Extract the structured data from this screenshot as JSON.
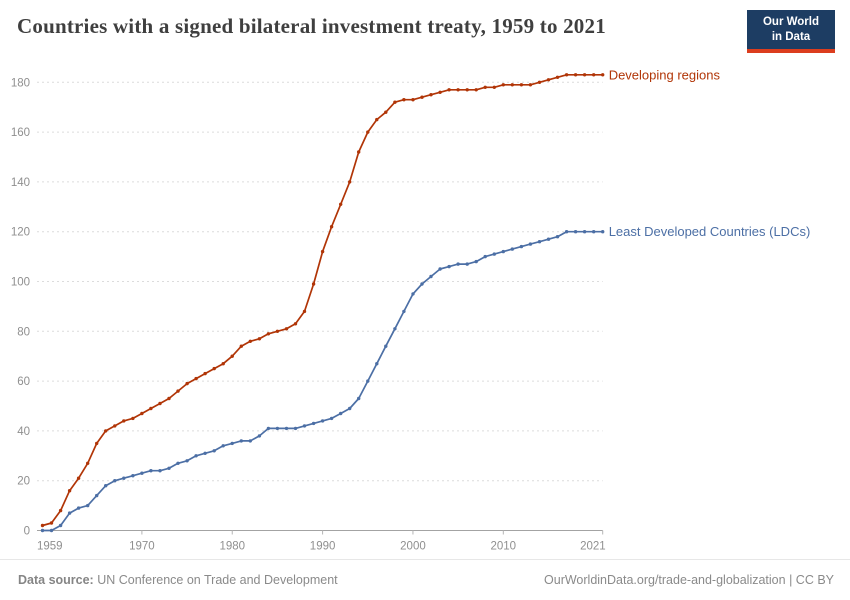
{
  "header": {
    "title": "Countries with a signed bilateral investment treaty, 1959 to 2021",
    "logo": {
      "line1": "Our World",
      "line2": "in Data"
    }
  },
  "chart_data": {
    "type": "line",
    "title": "Countries with a signed bilateral investment treaty, 1959 to 2021",
    "xlabel": "",
    "ylabel": "",
    "x_start": 1959,
    "x_end": 2021,
    "ylim": [
      0,
      180
    ],
    "grid": true,
    "legend_position": "right-of-line-end",
    "yticks": [
      0,
      20,
      40,
      60,
      80,
      100,
      120,
      140,
      160,
      180
    ],
    "xticks": [
      1959,
      1970,
      1980,
      1990,
      2000,
      2010,
      2021
    ],
    "years": [
      1959,
      1960,
      1961,
      1962,
      1963,
      1964,
      1965,
      1966,
      1967,
      1968,
      1969,
      1970,
      1971,
      1972,
      1973,
      1974,
      1975,
      1976,
      1977,
      1978,
      1979,
      1980,
      1981,
      1982,
      1983,
      1984,
      1985,
      1986,
      1987,
      1988,
      1989,
      1990,
      1991,
      1992,
      1993,
      1994,
      1995,
      1996,
      1997,
      1998,
      1999,
      2000,
      2001,
      2002,
      2003,
      2004,
      2005,
      2006,
      2007,
      2008,
      2009,
      2010,
      2011,
      2012,
      2013,
      2014,
      2015,
      2016,
      2017,
      2018,
      2019,
      2020,
      2021
    ],
    "series": [
      {
        "name": "Developing regions",
        "color": "#b13507",
        "values": [
          2,
          3,
          8,
          16,
          21,
          27,
          35,
          40,
          42,
          44,
          45,
          47,
          49,
          51,
          53,
          56,
          59,
          61,
          63,
          65,
          67,
          70,
          74,
          76,
          77,
          79,
          80,
          81,
          83,
          88,
          99,
          112,
          122,
          131,
          140,
          152,
          160,
          165,
          168,
          172,
          173,
          173,
          174,
          175,
          176,
          177,
          177,
          177,
          177,
          178,
          178,
          179,
          179,
          179,
          179,
          180,
          181,
          182,
          183,
          183,
          183,
          183,
          183
        ]
      },
      {
        "name": "Least Developed Countries (LDCs)",
        "color": "#4c6fa5",
        "values": [
          0,
          0,
          2,
          7,
          9,
          10,
          14,
          18,
          20,
          21,
          22,
          23,
          24,
          24,
          25,
          27,
          28,
          30,
          31,
          32,
          34,
          35,
          36,
          36,
          38,
          41,
          41,
          41,
          41,
          42,
          43,
          44,
          45,
          47,
          49,
          53,
          60,
          67,
          74,
          81,
          88,
          95,
          99,
          102,
          105,
          106,
          107,
          107,
          108,
          110,
          111,
          112,
          113,
          114,
          115,
          116,
          117,
          118,
          120,
          120,
          120,
          120,
          120
        ]
      }
    ],
    "theme": {
      "grid_color": "#dcdcdc",
      "axis_color": "#a3a3a3",
      "tick_color": "#b5b5b5",
      "tick_label_color": "#8f8f8f",
      "title_color": "#3f3f3f",
      "footer_color": "#8a8a8a",
      "logo_bg": "#1d3d63",
      "logo_accent": "#dc3d1e"
    }
  },
  "footer": {
    "source_label": "Data source:",
    "source_text": " UN Conference on Trade and Development",
    "link": "OurWorldinData.org/trade-and-globalization",
    "separator": " | ",
    "license": "CC BY"
  }
}
